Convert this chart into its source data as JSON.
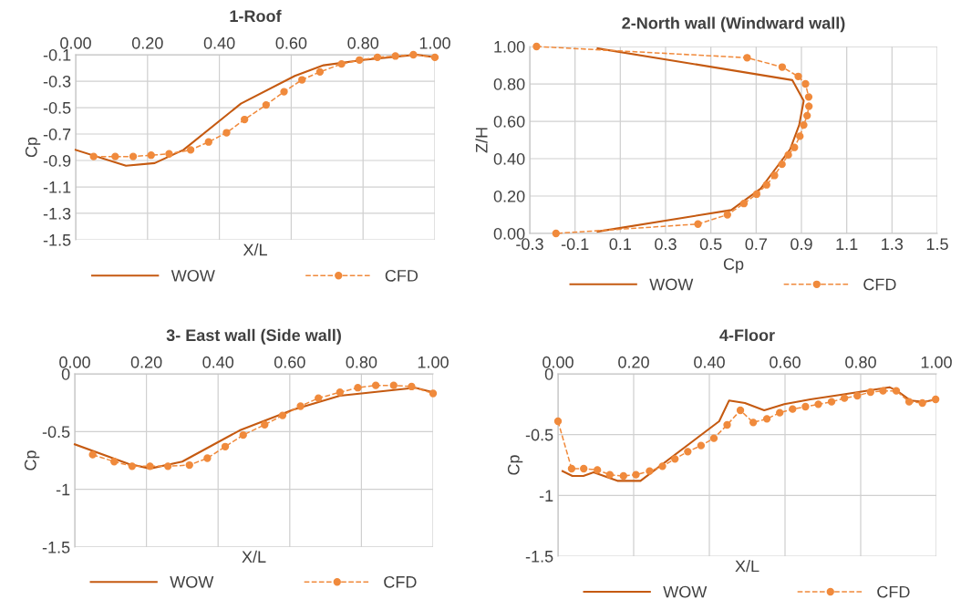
{
  "chart_data": [
    {
      "type": "line",
      "title": "1-Roof",
      "xlabel": "X/L",
      "ylabel": "Cp",
      "xlim": [
        0,
        1
      ],
      "ylim": [
        -1.5,
        -0.1
      ],
      "xticks": [
        {
          "value": 0,
          "label": "0.00"
        },
        {
          "value": 0.2,
          "label": "0.20"
        },
        {
          "value": 0.4,
          "label": "0.40"
        },
        {
          "value": 0.6,
          "label": "0.60"
        },
        {
          "value": 0.8,
          "label": "0.80"
        },
        {
          "value": 1,
          "label": "1.00"
        }
      ],
      "yticks": [
        -0.1,
        -0.3,
        -0.5,
        -0.7,
        -0.9,
        -1.1,
        -1.3,
        -1.5
      ],
      "grid": true,
      "legend": "bottom",
      "series": [
        {
          "name": "WOW",
          "color": "#c55a11",
          "line_style": "solid",
          "marker": "none",
          "x": [
            0,
            0.14,
            0.22,
            0.3,
            0.46,
            0.61,
            0.69,
            0.8,
            0.95,
            1.0
          ],
          "values": [
            -0.82,
            -0.94,
            -0.92,
            -0.82,
            -0.47,
            -0.26,
            -0.18,
            -0.14,
            -0.1,
            -0.12
          ]
        },
        {
          "name": "CFD",
          "color": "#f08a3c",
          "line_style": "dashed",
          "marker": "circle",
          "x": [
            0.05,
            0.11,
            0.16,
            0.21,
            0.26,
            0.32,
            0.37,
            0.42,
            0.47,
            0.53,
            0.58,
            0.63,
            0.68,
            0.74,
            0.79,
            0.84,
            0.89,
            0.94,
            1.0
          ],
          "values": [
            -0.87,
            -0.87,
            -0.87,
            -0.86,
            -0.85,
            -0.82,
            -0.76,
            -0.69,
            -0.59,
            -0.48,
            -0.38,
            -0.29,
            -0.23,
            -0.17,
            -0.14,
            -0.12,
            -0.11,
            -0.1,
            -0.12
          ]
        }
      ]
    },
    {
      "type": "line",
      "title": "2-North wall (Windward wall)",
      "xlabel": "Cp",
      "ylabel": "Z/H",
      "xlim": [
        -0.3,
        1.5
      ],
      "ylim": [
        0,
        1
      ],
      "xticks": [
        -0.3,
        -0.1,
        0.1,
        0.3,
        0.5,
        0.7,
        0.9,
        1.1,
        1.3,
        1.5
      ],
      "yticks": [
        {
          "value": 0,
          "label": "0.00"
        },
        {
          "value": 0.2,
          "label": "0.20"
        },
        {
          "value": 0.4,
          "label": "0.40"
        },
        {
          "value": 0.6,
          "label": "0.60"
        },
        {
          "value": 0.8,
          "label": "0.80"
        },
        {
          "value": 1,
          "label": "1.00"
        }
      ],
      "grid": true,
      "legend": "bottom",
      "series": [
        {
          "name": "WOW",
          "color": "#c55a11",
          "line_style": "solid",
          "marker": "none",
          "x": [
            0.0,
            0.86,
            0.91,
            0.89,
            0.85,
            0.72,
            0.59,
            0.0
          ],
          "values": [
            0.99,
            0.82,
            0.71,
            0.58,
            0.45,
            0.24,
            0.125,
            0.01
          ]
        },
        {
          "name": "CFD",
          "color": "#f08a3c",
          "line_style": "dashed",
          "marker": "circle",
          "x": [
            -0.27,
            0.66,
            0.815,
            0.886,
            0.918,
            0.932,
            0.933,
            0.925,
            0.91,
            0.893,
            0.869,
            0.842,
            0.814,
            0.781,
            0.746,
            0.702,
            0.646,
            0.573,
            0.443,
            -0.184
          ],
          "values": [
            1.0,
            0.94,
            0.89,
            0.84,
            0.8,
            0.73,
            0.68,
            0.63,
            0.58,
            0.52,
            0.46,
            0.42,
            0.37,
            0.31,
            0.26,
            0.21,
            0.16,
            0.1,
            0.05,
            0.0
          ]
        }
      ]
    },
    {
      "type": "line",
      "title": "3- East wall (Side wall)",
      "xlabel": "X/L",
      "ylabel": "Cp",
      "xlim": [
        0,
        1
      ],
      "ylim": [
        -1.5,
        0
      ],
      "xticks": [
        {
          "value": 0,
          "label": "0.00"
        },
        {
          "value": 0.2,
          "label": "0.20"
        },
        {
          "value": 0.4,
          "label": "0.40"
        },
        {
          "value": 0.6,
          "label": "0.60"
        },
        {
          "value": 0.8,
          "label": "0.80"
        },
        {
          "value": 1,
          "label": "1.00"
        }
      ],
      "yticks": [
        0,
        -0.5,
        -1,
        -1.5
      ],
      "grid": true,
      "legend": "bottom",
      "series": [
        {
          "name": "WOW",
          "color": "#c55a11",
          "line_style": "solid",
          "marker": "none",
          "x": [
            0,
            0.15,
            0.21,
            0.3,
            0.46,
            0.61,
            0.74,
            0.95,
            1.0
          ],
          "values": [
            -0.61,
            -0.78,
            -0.82,
            -0.76,
            -0.49,
            -0.31,
            -0.19,
            -0.12,
            -0.16
          ]
        },
        {
          "name": "CFD",
          "color": "#f08a3c",
          "line_style": "dashed",
          "marker": "circle",
          "x": [
            0.05,
            0.11,
            0.16,
            0.21,
            0.26,
            0.32,
            0.37,
            0.42,
            0.47,
            0.53,
            0.58,
            0.63,
            0.68,
            0.74,
            0.79,
            0.84,
            0.89,
            0.94,
            1.0
          ],
          "values": [
            -0.7,
            -0.76,
            -0.8,
            -0.8,
            -0.8,
            -0.79,
            -0.73,
            -0.63,
            -0.53,
            -0.44,
            -0.36,
            -0.28,
            -0.21,
            -0.16,
            -0.12,
            -0.1,
            -0.1,
            -0.11,
            -0.17
          ]
        }
      ]
    },
    {
      "type": "line",
      "title": "4-Floor",
      "xlabel": "X/L",
      "ylabel": "Cp",
      "xlim": [
        0,
        1
      ],
      "ylim": [
        -1.5,
        0
      ],
      "xticks": [
        {
          "value": 0,
          "label": "0.00"
        },
        {
          "value": 0.2,
          "label": "0.20"
        },
        {
          "value": 0.4,
          "label": "0.40"
        },
        {
          "value": 0.6,
          "label": "0.60"
        },
        {
          "value": 0.8,
          "label": "0.80"
        },
        {
          "value": 1,
          "label": "1.00"
        }
      ],
      "yticks": [
        0,
        -0.5,
        -1,
        -1.5
      ],
      "grid": true,
      "legend": "bottom",
      "series": [
        {
          "name": "WOW",
          "color": "#c55a11",
          "line_style": "solid",
          "marker": "none",
          "x": [
            0.012,
            0.038,
            0.067,
            0.094,
            0.157,
            0.218,
            0.426,
            0.452,
            0.494,
            0.545,
            0.598,
            0.667,
            0.751,
            0.876,
            0.896,
            0.932,
            0.968,
            1.0
          ],
          "values": [
            -0.8,
            -0.84,
            -0.84,
            -0.81,
            -0.88,
            -0.88,
            -0.39,
            -0.22,
            -0.24,
            -0.3,
            -0.25,
            -0.21,
            -0.17,
            -0.11,
            -0.14,
            -0.22,
            -0.23,
            -0.21
          ]
        },
        {
          "name": "CFD",
          "color": "#f08a3c",
          "line_style": "dashed",
          "marker": "circle",
          "x": [
            0.0,
            0.036,
            0.068,
            0.104,
            0.137,
            0.173,
            0.206,
            0.242,
            0.276,
            0.309,
            0.343,
            0.378,
            0.412,
            0.447,
            0.482,
            0.516,
            0.552,
            0.586,
            0.62,
            0.654,
            0.688,
            0.723,
            0.757,
            0.791,
            0.826,
            0.859,
            0.894,
            0.928,
            0.963,
            0.998
          ],
          "values": [
            -0.39,
            -0.78,
            -0.78,
            -0.79,
            -0.83,
            -0.84,
            -0.83,
            -0.8,
            -0.76,
            -0.7,
            -0.64,
            -0.59,
            -0.53,
            -0.42,
            -0.3,
            -0.4,
            -0.37,
            -0.32,
            -0.29,
            -0.27,
            -0.25,
            -0.23,
            -0.2,
            -0.18,
            -0.15,
            -0.14,
            -0.14,
            -0.23,
            -0.24,
            -0.21
          ]
        }
      ]
    }
  ]
}
